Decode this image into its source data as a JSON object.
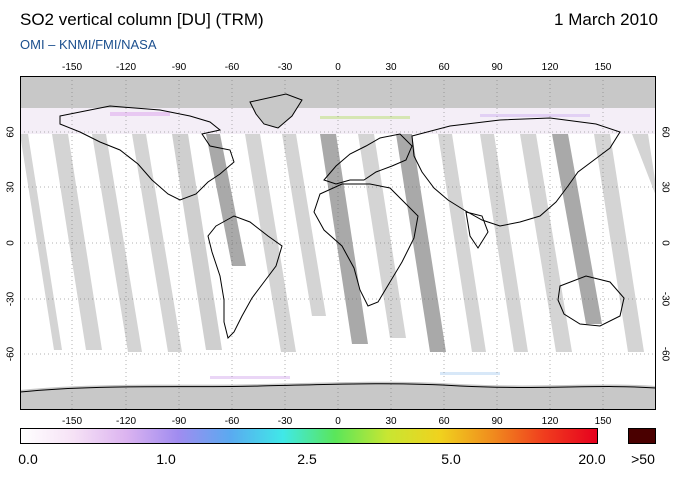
{
  "header": {
    "title": "SO2 vertical column [DU] (TRM)",
    "date": "1 March 2010",
    "credit": "OMI  –  KNMI/FMI/NASA"
  },
  "map": {
    "lon_ticks": [
      "-150",
      "-120",
      "-90",
      "-60",
      "-30",
      "0",
      "30",
      "60",
      "90",
      "120",
      "150"
    ],
    "lat_ticks": [
      "60",
      "30",
      "0",
      "-30",
      "-60"
    ],
    "colors": {
      "land_gray": "#c8c8c8",
      "swath_light": "#d4d4d4",
      "swath_dark": "#a9a9a9",
      "coastline": "#000000",
      "grid": "#666666"
    }
  },
  "colorbar": {
    "labels": [
      "0.0",
      "1.0",
      "2.5",
      "5.0",
      "20.0",
      ">50"
    ],
    "stops": [
      "#ffffff",
      "#f6e2f6",
      "#dcb4f0",
      "#a08cf0",
      "#5aaaf0",
      "#40e8e8",
      "#5ae65a",
      "#c8e632",
      "#f0d21e",
      "#f08c1e",
      "#f03c1e",
      "#e6001e"
    ],
    "overflow_color": "#4a0000"
  }
}
